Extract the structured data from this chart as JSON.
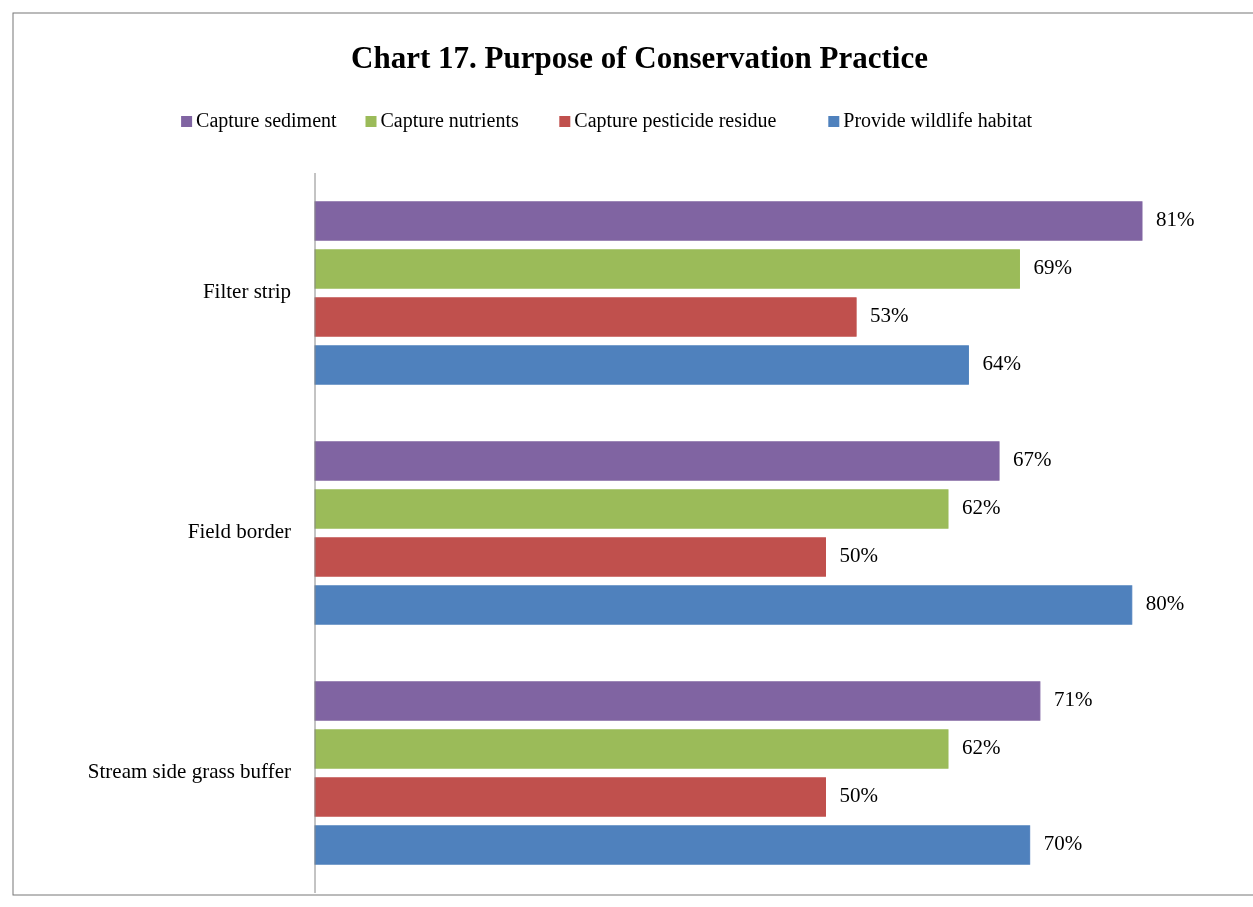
{
  "chart_data": {
    "type": "bar",
    "orientation": "horizontal",
    "title": "Chart 17. Purpose of Conservation Practice",
    "categories": [
      "Filter strip",
      "Field border",
      "Stream side grass buffer"
    ],
    "series": [
      {
        "name": "Capture sediment",
        "color": "#8064a2",
        "values": [
          81,
          67,
          71
        ],
        "value_labels": [
          "81%",
          "67%",
          "71%"
        ]
      },
      {
        "name": "Capture nutrients",
        "color": "#9bbb59",
        "values": [
          69,
          62,
          62
        ],
        "value_labels": [
          "69%",
          "62%",
          "62%"
        ]
      },
      {
        "name": "Capture pesticide residue",
        "color": "#c0504d",
        "values": [
          53,
          50,
          50
        ],
        "value_labels": [
          "53%",
          "50%",
          "50%"
        ]
      },
      {
        "name": "Provide wildlife habitat",
        "color": "#4f81bd",
        "values": [
          64,
          80,
          70
        ],
        "value_labels": [
          "64%",
          "80%",
          "70%"
        ]
      }
    ],
    "legend": "top"
  }
}
